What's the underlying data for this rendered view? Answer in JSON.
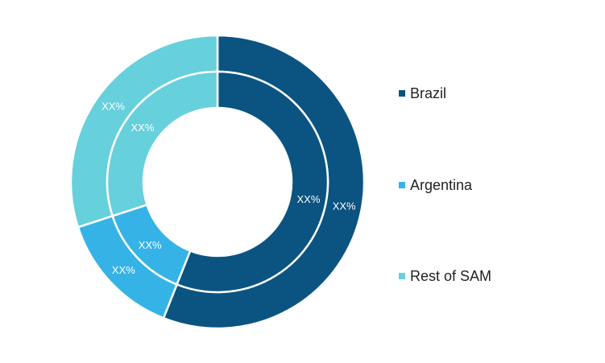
{
  "chart_data": {
    "type": "donut",
    "categories": [
      "Brazil",
      "Argentina",
      "Rest of SAM"
    ],
    "colors": [
      "#0b5481",
      "#36b3e6",
      "#66d0dc"
    ],
    "series": [
      {
        "ring": "outer",
        "values": [
          0.56,
          0.14,
          0.3
        ],
        "labels": [
          "XX%",
          "XX%",
          "XX%"
        ]
      },
      {
        "ring": "inner",
        "values": [
          0.56,
          0.14,
          0.3
        ],
        "labels": [
          "XX%",
          "XX%",
          "XX%"
        ]
      }
    ],
    "legend_position": "right"
  },
  "legend": {
    "items": [
      {
        "label": "Brazil",
        "color": "#0b5481"
      },
      {
        "label": "Argentina",
        "color": "#36b3e6"
      },
      {
        "label": "Rest of SAM",
        "color": "#66d0dc"
      }
    ]
  }
}
